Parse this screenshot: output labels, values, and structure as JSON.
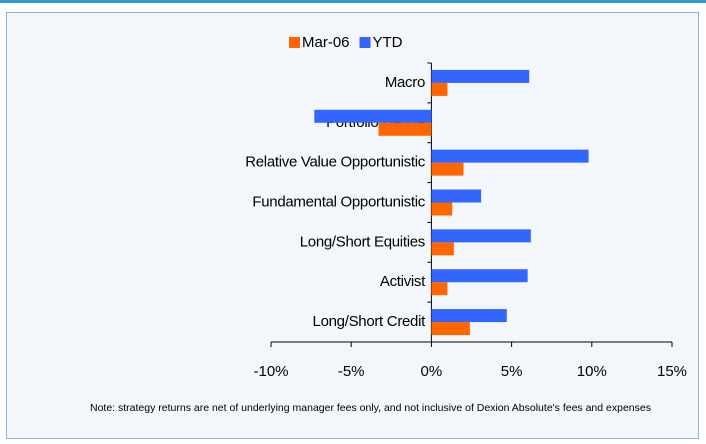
{
  "chart_data": {
    "type": "hbar",
    "categories": [
      "Macro",
      "Portfolio Hedge",
      "Relative Value Opportunistic",
      "Fundamental Opportunistic",
      "Long/Short Equities",
      "Activist",
      "Long/Short Credit"
    ],
    "series": [
      {
        "name": "Mar-06",
        "color": "#ff6600",
        "values": [
          1.0,
          -3.3,
          2.0,
          1.3,
          1.4,
          1.0,
          2.4
        ]
      },
      {
        "name": "YTD",
        "color": "#3366ff",
        "values": [
          6.1,
          -7.3,
          9.8,
          3.1,
          6.2,
          6.0,
          4.7
        ]
      }
    ],
    "xlim": [
      -10,
      15
    ],
    "xticks": [
      {
        "value": -10,
        "label": "-10%"
      },
      {
        "value": -5,
        "label": "-5%"
      },
      {
        "value": 0,
        "label": "0%"
      },
      {
        "value": 5,
        "label": "5%"
      },
      {
        "value": 10,
        "label": "10%"
      },
      {
        "value": 15,
        "label": "15%"
      }
    ],
    "note": "Note: strategy returns are net of underlying manager fees only, and not inclusive of Dexion Absolute's fees and expenses"
  }
}
